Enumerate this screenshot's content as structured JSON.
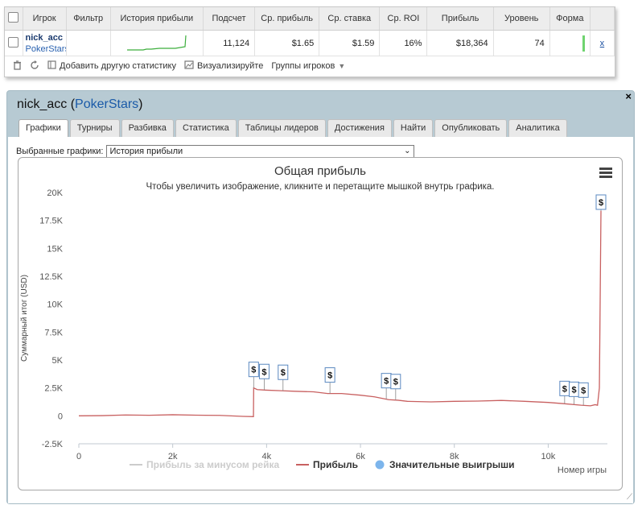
{
  "stats_table": {
    "headers": [
      "Игрок",
      "Фильтр",
      "История прибыли",
      "Подсчет",
      "Ср. прибыль",
      "Ср. ставка",
      "Ср. ROI",
      "Прибыль",
      "Уровень",
      "Форма"
    ],
    "row": {
      "player_name": "nick_acc",
      "player_site": "PokerStars",
      "count": "11,124",
      "avg_profit": "$1.65",
      "avg_stake": "$1.59",
      "avg_roi": "16%",
      "profit": "$18,364",
      "level": "74",
      "remove": "x"
    },
    "toolbar": {
      "add_stats": "Добавить другую статистику",
      "visualize": "Визуализируйте",
      "player_groups": "Группы игроков"
    }
  },
  "panel": {
    "player": "nick_acc",
    "site": "PokerStars",
    "close": "×",
    "tabs": [
      "Графики",
      "Турниры",
      "Разбивка",
      "Статистика",
      "Таблицы лидеров",
      "Достижения",
      "Найти",
      "Опубликовать",
      "Аналитика"
    ],
    "active_tab": 0,
    "selector_label": "Выбранные графики:",
    "selector_value": "История прибыли"
  },
  "chart_data": {
    "type": "line",
    "title": "Общая прибыль",
    "subtitle": "Чтобы увеличить изображение, кликните и перетащите мышкой внутрь графика.",
    "xlabel": "Номер игры",
    "ylabel": "Суммарный итог (USD)",
    "xlim": [
      0,
      11124
    ],
    "ylim": [
      -2500,
      20000
    ],
    "xticks": [
      0,
      2000,
      4000,
      6000,
      8000,
      10000
    ],
    "xtick_labels": [
      "0",
      "2k",
      "4k",
      "6k",
      "8k",
      "10k"
    ],
    "yticks": [
      -2500,
      0,
      2500,
      5000,
      7500,
      10000,
      12500,
      15000,
      17500,
      20000
    ],
    "ytick_labels": [
      "-2.5K",
      "0",
      "2.5K",
      "5K",
      "7.5K",
      "10K",
      "12.5K",
      "15K",
      "17.5K",
      "20K"
    ],
    "series": [
      {
        "name": "Прибыль за минусом рейка",
        "color": "#cccccc",
        "visible": false,
        "points": []
      },
      {
        "name": "Прибыль",
        "color": "#c86060",
        "points": [
          [
            0,
            0
          ],
          [
            500,
            20
          ],
          [
            1000,
            80
          ],
          [
            1500,
            50
          ],
          [
            2000,
            100
          ],
          [
            2500,
            60
          ],
          [
            3000,
            40
          ],
          [
            3500,
            -50
          ],
          [
            3720,
            -70
          ],
          [
            3725,
            2500
          ],
          [
            3800,
            2350
          ],
          [
            4000,
            2300
          ],
          [
            4300,
            2250
          ],
          [
            4600,
            2200
          ],
          [
            5000,
            2150
          ],
          [
            5300,
            2000
          ],
          [
            5600,
            2000
          ],
          [
            6000,
            1850
          ],
          [
            6300,
            1700
          ],
          [
            6600,
            1450
          ],
          [
            6800,
            1400
          ],
          [
            7000,
            1300
          ],
          [
            7500,
            1250
          ],
          [
            8000,
            1300
          ],
          [
            8500,
            1320
          ],
          [
            9000,
            1380
          ],
          [
            9500,
            1300
          ],
          [
            10000,
            1200
          ],
          [
            10300,
            1100
          ],
          [
            10700,
            950
          ],
          [
            10900,
            900
          ],
          [
            11000,
            1000
          ],
          [
            11050,
            950
          ],
          [
            11090,
            2500
          ],
          [
            11124,
            18364
          ]
        ]
      },
      {
        "name": "Значительные выигрыши",
        "color": "#7cb5ec",
        "type": "flags",
        "marker": "$",
        "x": [
          3725,
          3950,
          4350,
          5350,
          6550,
          6750,
          10350,
          10550,
          10750,
          11124
        ]
      }
    ],
    "legend_position": "bottom",
    "grid": false
  }
}
